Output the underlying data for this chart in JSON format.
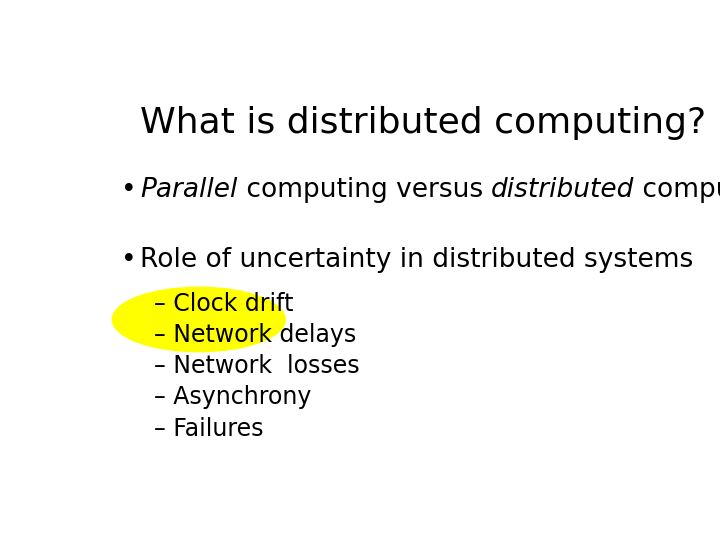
{
  "title": "What is distributed computing?",
  "background_color": "#ffffff",
  "title_fontsize": 26,
  "bullet1_parts": [
    {
      "text": "Parallel",
      "style": "italic"
    },
    {
      "text": " computing versus ",
      "style": "normal"
    },
    {
      "text": "distributed",
      "style": "italic"
    },
    {
      "text": " computing",
      "style": "normal"
    }
  ],
  "bullet2_text": "Role of uncertainty in distributed systems",
  "sub_items": [
    "– Clock drift",
    "– Network delays",
    "– Network  losses",
    "– Asynchrony",
    "– Failures"
  ],
  "highlight_color": "#FFFF00",
  "text_color": "#000000",
  "bullet_fontsize": 19,
  "sub_fontsize": 17
}
